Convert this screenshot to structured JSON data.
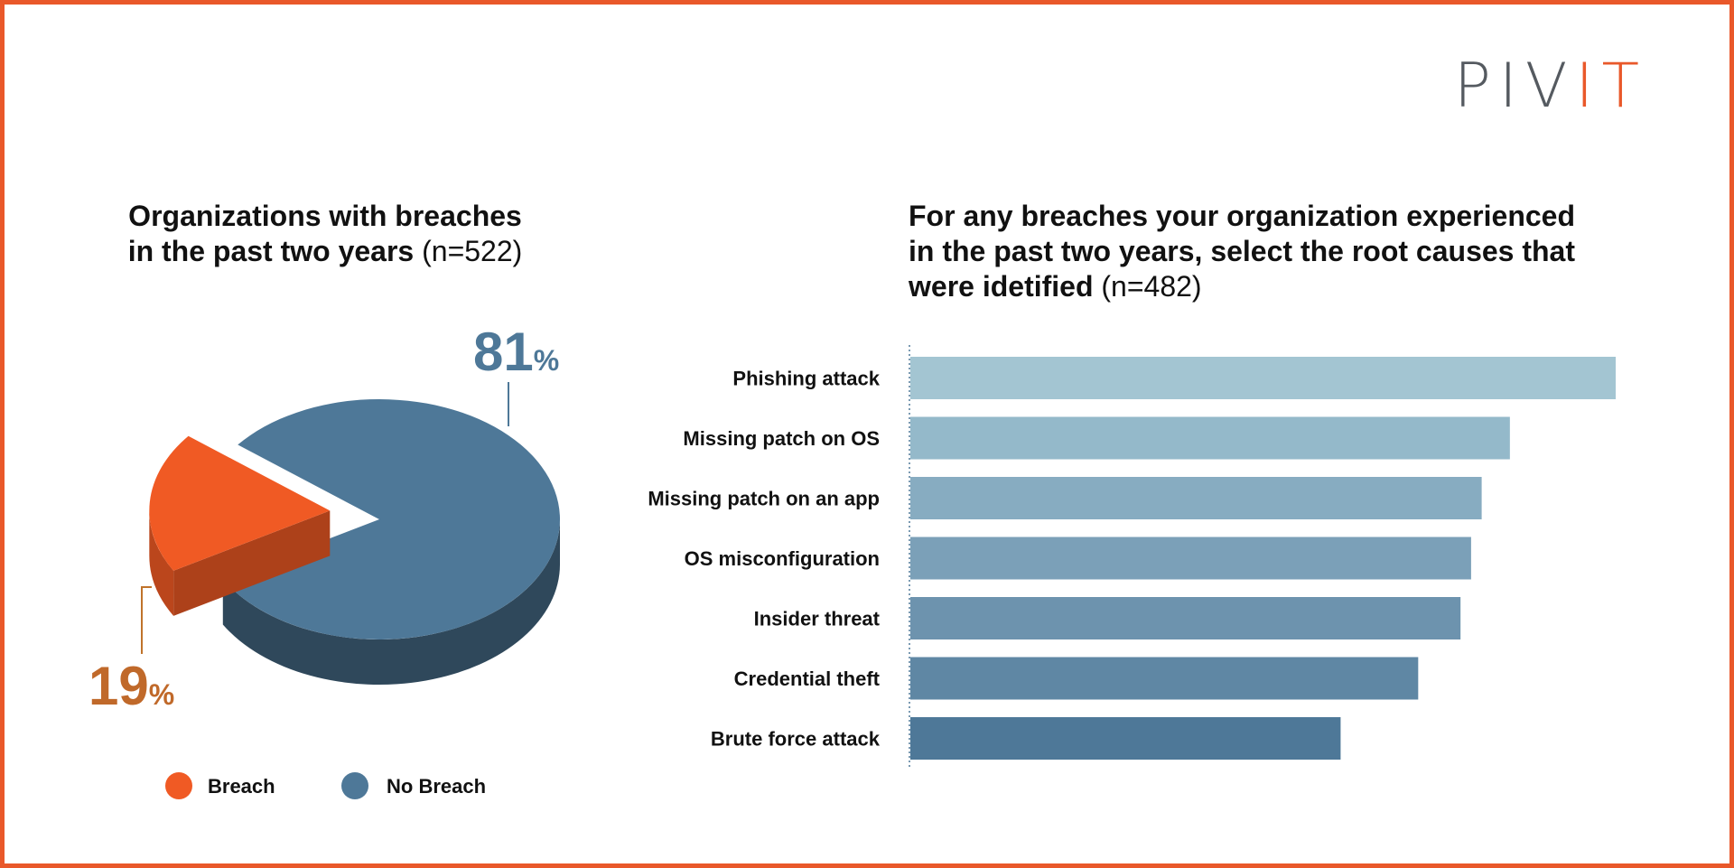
{
  "brand": {
    "logo_main": "PIV",
    "logo_accent": "IT",
    "accent_color": "#e9582a",
    "logo_gray": "#555a60"
  },
  "left_chart": {
    "title_line1": "Organizations with breaches",
    "title_line2": "in the past two years",
    "sample": "(n=522)"
  },
  "right_chart": {
    "title_line1": "For any breaches your organization experienced",
    "title_line2": "in the past two years, select the root causes that",
    "title_line3": "were idetified",
    "sample": "(n=482)"
  },
  "chart_data": [
    {
      "type": "pie",
      "title": "Organizations with breaches in the past two years (n=522)",
      "labels": [
        "Breach",
        "No Breach"
      ],
      "values": [
        19,
        81
      ],
      "value_labels": [
        {
          "number": "19",
          "unit": "%"
        },
        {
          "number": "81",
          "unit": "%"
        }
      ],
      "colors": [
        "#f05a24",
        "#4e7898"
      ],
      "legend": "bottom",
      "style": "3d-exploded"
    },
    {
      "type": "bar",
      "orientation": "horizontal",
      "title": "For any breaches your organization experienced in the past two years, select the root causes that were idetified (n=482)",
      "categories": [
        "Phishing attack",
        "Missing patch on OS",
        "Missing patch on an app",
        "OS misconfiguration",
        "Insider threat",
        "Credential theft",
        "Brute force attack"
      ],
      "values": [
        100,
        85,
        81,
        79.5,
        78,
        72,
        61
      ],
      "unit": "relative",
      "xlim": [
        0,
        100
      ],
      "grid": false,
      "colors": [
        "#a3c5d2",
        "#94b9ca",
        "#87acc1",
        "#7ba0b8",
        "#6d93ae",
        "#5f87a4",
        "#4e7898"
      ]
    }
  ]
}
